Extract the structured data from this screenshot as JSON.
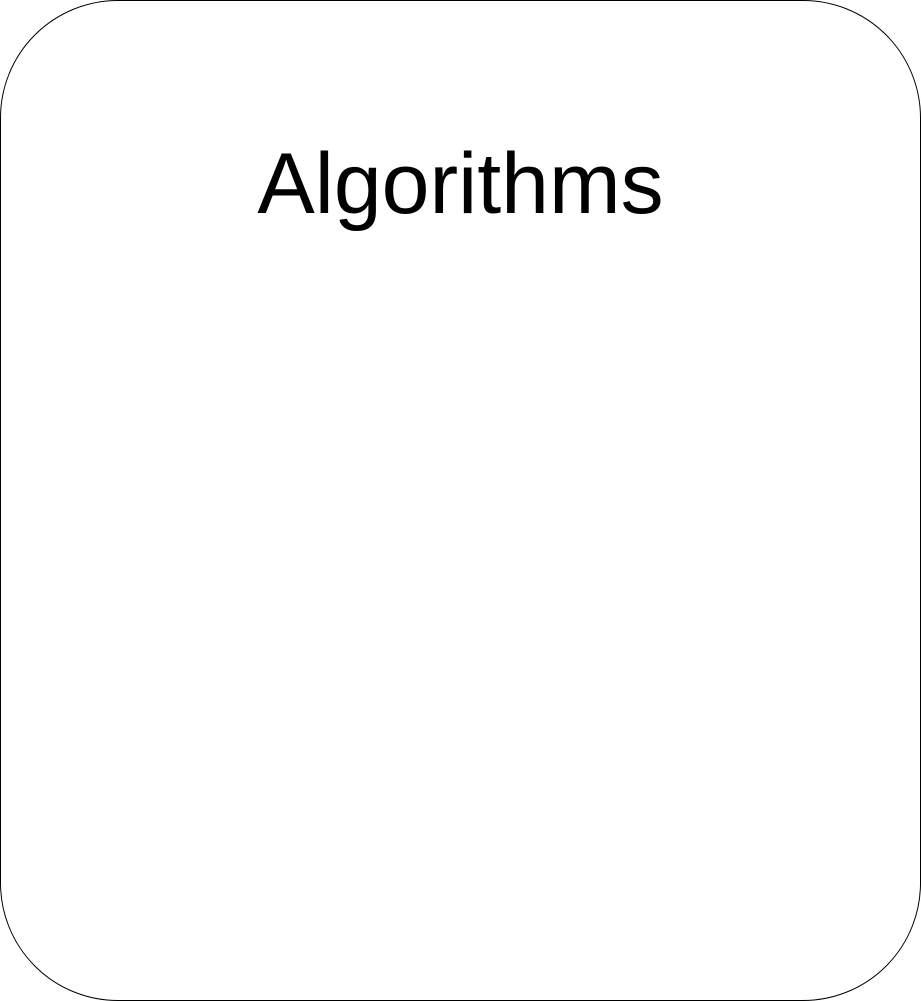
{
  "box": {
    "title": "Algorithms",
    "border_color": "#000000",
    "fill_color": "#ffffff"
  }
}
